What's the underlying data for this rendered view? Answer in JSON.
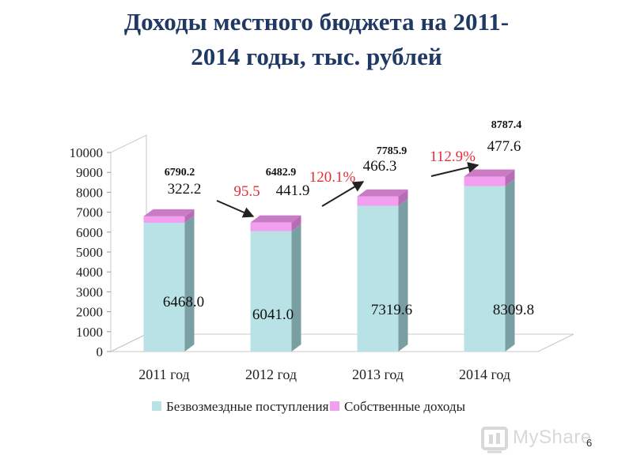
{
  "title_line1": "Доходы местного бюджета на 2011-",
  "title_line2": "2014 годы,  тыс. рублей",
  "page_number": "6",
  "watermark_text": "MyShare",
  "chart_data": {
    "type": "bar",
    "stacked": true,
    "categories": [
      "2011 год",
      "2012 год",
      "2013 год",
      "2014 год"
    ],
    "series": [
      {
        "name": "Безвозмездные поступления",
        "values": [
          6468.0,
          6041.0,
          7319.6,
          8309.8
        ],
        "labels": [
          "6468.0",
          "6041.0",
          "7319.6",
          "8309.8"
        ],
        "color": "#b9e2e6",
        "side_color": "#7a9fa3",
        "top_color": "#9fd2d8"
      },
      {
        "name": "Собственные доходы",
        "values": [
          322.2,
          441.9,
          466.3,
          477.6
        ],
        "labels": [
          "322.2",
          "441.9",
          "466.3",
          "477.6"
        ],
        "color": "#f39ff0",
        "side_color": "#b86cb5",
        "top_color": "#c97bc6"
      }
    ],
    "totals": [
      "6790.2",
      "6482.9",
      "7785.9",
      "8787.4"
    ],
    "growth_labels": [
      "95.5",
      "120.1%",
      "112.9%"
    ],
    "ylim": [
      0,
      10000
    ],
    "yticks": [
      "0",
      "1000",
      "2000",
      "3000",
      "4000",
      "5000",
      "6000",
      "7000",
      "8000",
      "9000",
      "10000"
    ],
    "legend_position": "bottom",
    "grid": false,
    "annotation_color": "#e0303a"
  }
}
